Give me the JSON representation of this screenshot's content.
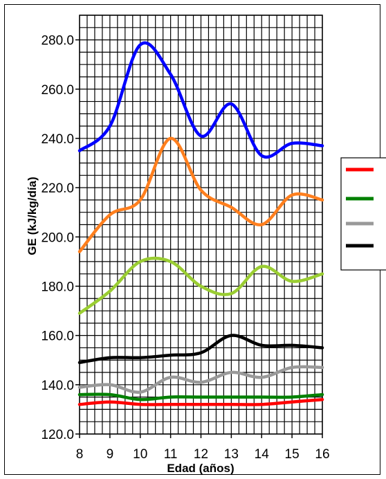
{
  "chart_data": {
    "type": "line",
    "title": "",
    "xlabel": "Edad (años)",
    "ylabel": "GE (kJ/kg/día)",
    "x": [
      8,
      9,
      10,
      11,
      12,
      13,
      14,
      15,
      16
    ],
    "xlim": [
      8,
      16
    ],
    "ylim": [
      120,
      290
    ],
    "yticks": [
      120,
      140,
      160,
      180,
      200,
      220,
      240,
      260,
      280
    ],
    "y_tick_labels": [
      "120.0",
      "140.0",
      "160.0",
      "180.0",
      "200.0",
      "220.0",
      "240.0",
      "260.0",
      "280.0"
    ],
    "x_tick_labels": [
      "8",
      "9",
      "10",
      "11",
      "12",
      "13",
      "14",
      "15",
      "16"
    ],
    "grid": true,
    "legend_position": "right",
    "series": [
      {
        "color": "#0000ff",
        "values": [
          235,
          245,
          278,
          266,
          241,
          254,
          233,
          238,
          237
        ]
      },
      {
        "color": "#ff7f1e",
        "values": [
          194,
          209,
          215,
          240,
          219,
          212,
          205,
          217,
          215
        ]
      },
      {
        "color": "#9acd32",
        "values": [
          169,
          178,
          190,
          190,
          180,
          177,
          188,
          182,
          185
        ]
      },
      {
        "color": "#000000",
        "values": [
          149,
          151,
          151,
          152,
          153,
          160,
          156,
          156,
          155
        ]
      },
      {
        "color": "#999999",
        "values": [
          139,
          140,
          137,
          143,
          141,
          145,
          143,
          147,
          147
        ]
      },
      {
        "color": "#008000",
        "values": [
          136,
          136,
          134,
          135,
          135,
          135,
          135,
          135,
          136
        ]
      },
      {
        "color": "#ff0000",
        "values": [
          132,
          133,
          132,
          132,
          132,
          132,
          132,
          133,
          134
        ]
      }
    ],
    "legend": [
      {
        "color": "#ff0000"
      },
      {
        "color": "#008000"
      },
      {
        "color": "#999999"
      },
      {
        "color": "#000000"
      }
    ]
  }
}
